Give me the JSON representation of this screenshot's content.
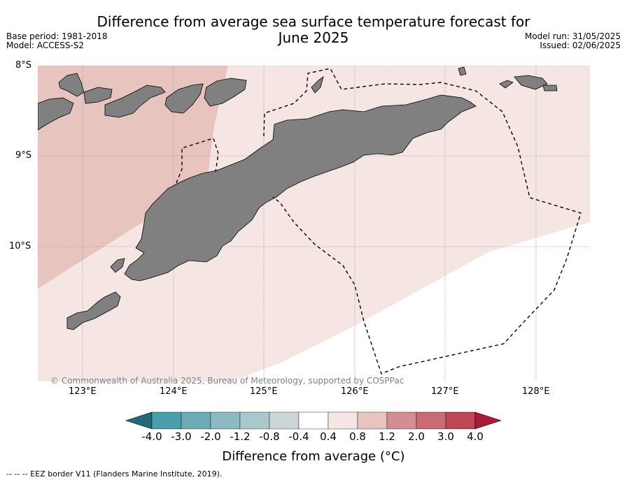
{
  "title": {
    "line1": "Difference from average sea surface temperature forecast for",
    "line2": "June 2025"
  },
  "meta_left": {
    "base_period": "Base period: 1981-2018",
    "model": "Model: ACCESS-S2"
  },
  "meta_right": {
    "model_run": "Model run: 31/05/2025",
    "issued": "Issued: 02/06/2025"
  },
  "map": {
    "lat_labels": [
      "8°S",
      "9°S",
      "10°S"
    ],
    "lon_labels": [
      "123°E",
      "124°E",
      "125°E",
      "126°E",
      "127°E",
      "128°E"
    ],
    "copyright": "© Commonwealth of Australia 2025, Bureau of Meteorology, supported by COSPPac",
    "land_color": "#808080",
    "anomaly_classes_shown": [
      "0.4 to 0.8",
      "0.8 to 1.2",
      "-0.4 to 0.4"
    ]
  },
  "colorbar": {
    "ticks": [
      "-4.0",
      "-3.0",
      "-2.0",
      "-1.2",
      "-0.8",
      "-0.4",
      "0.4",
      "0.8",
      "1.2",
      "2.0",
      "3.0",
      "4.0"
    ],
    "colors": [
      "#1f6b78",
      "#4a9fac",
      "#6caab6",
      "#8db9c3",
      "#a9c8cc",
      "#cdd6d7",
      "#ffffff",
      "#f5e6e4",
      "#e8c4bf",
      "#d48d92",
      "#c96a74",
      "#bf4654",
      "#a81b3a"
    ],
    "label": "Difference from average (°C)"
  },
  "footnote": "--  --  -- EEZ border V11 (Flanders Marine Institute, 2019)."
}
